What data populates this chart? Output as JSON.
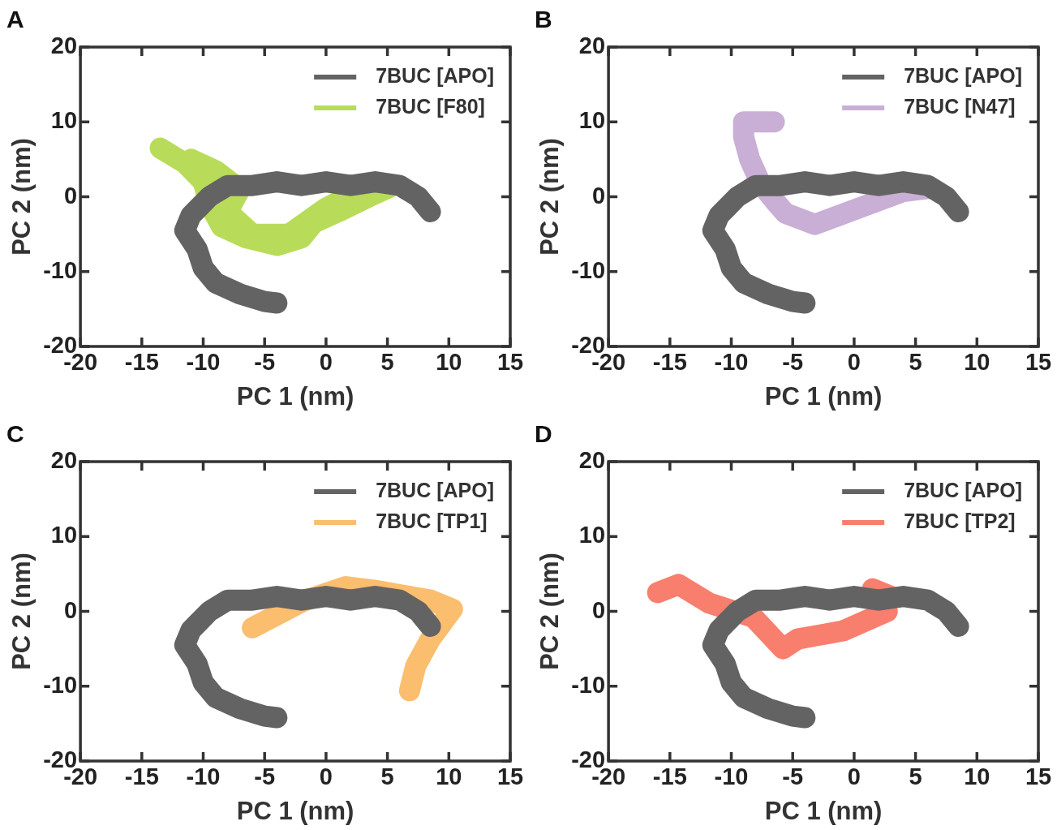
{
  "chart_data": [
    {
      "type": "line",
      "title": "A",
      "xlabel": "PC 1 (nm)",
      "ylabel": "PC 2 (nm)",
      "xlim": [
        -20,
        15
      ],
      "xticks": [
        -20,
        -15,
        -10,
        -5,
        0,
        5,
        10,
        15
      ],
      "ylim": [
        -20,
        20
      ],
      "yticks": [
        -20,
        -10,
        0,
        10,
        20
      ],
      "grid": false,
      "legend": "top right",
      "marker": "none",
      "series": [
        {
          "name": "7BUC [APO]",
          "color": "#636363",
          "x": [
            8.5,
            7.5,
            6,
            4,
            2,
            0,
            -2,
            -4,
            -6,
            -8,
            -9.5,
            -11,
            -11.5,
            -10.5,
            -10,
            -9,
            -7,
            -5,
            -4
          ],
          "values": [
            -2,
            0,
            1.5,
            2,
            1.5,
            2,
            1.5,
            2,
            1.5,
            1.5,
            0,
            -2.5,
            -4.5,
            -7,
            -9.5,
            -11.5,
            -13,
            -14,
            -14.2
          ]
        },
        {
          "name": "7BUC [F80]",
          "color": "#b8dc5a",
          "x": [
            -13.5,
            -11.5,
            -10,
            -9.5,
            -8.5,
            -6.5,
            -4,
            -2,
            -1,
            1,
            3.5,
            5.5,
            3,
            0,
            -3,
            -6,
            -8,
            -7,
            -9,
            -11
          ],
          "values": [
            6.5,
            4.5,
            2,
            -1,
            -4,
            -5.5,
            -6.5,
            -5.5,
            -3.5,
            -2,
            0,
            1.5,
            1,
            -1.5,
            -5,
            -5,
            -2,
            1,
            3.5,
            5
          ]
        }
      ]
    },
    {
      "type": "line",
      "title": "B",
      "xlabel": "PC 1 (nm)",
      "ylabel": "PC 2 (nm)",
      "xlim": [
        -20,
        15
      ],
      "xticks": [
        -20,
        -15,
        -10,
        -5,
        0,
        5,
        10,
        15
      ],
      "ylim": [
        -20,
        20
      ],
      "yticks": [
        -20,
        -10,
        0,
        10,
        20
      ],
      "grid": false,
      "legend": "top right",
      "marker": "none",
      "series": [
        {
          "name": "7BUC [APO]",
          "color": "#636363",
          "x": [
            8.5,
            7.5,
            6,
            4,
            2,
            0,
            -2,
            -4,
            -6,
            -8,
            -9.5,
            -11,
            -11.5,
            -10.5,
            -10,
            -9,
            -7,
            -5,
            -4
          ],
          "values": [
            -2,
            0,
            1.5,
            2,
            1.5,
            2,
            1.5,
            2,
            1.5,
            1.5,
            0,
            -2.5,
            -4.5,
            -7,
            -9.5,
            -11.5,
            -13,
            -14,
            -14.2
          ]
        },
        {
          "name": "7BUC [N47]",
          "color": "#c9aed6",
          "x": [
            -6.5,
            -9,
            -9,
            -8.5,
            -7.6,
            -6.5,
            -5.6,
            -3.2,
            0.4,
            4,
            6
          ],
          "values": [
            10,
            10,
            8,
            5,
            1.7,
            -0.5,
            -2.2,
            -3.7,
            -1.5,
            0.7,
            1.1
          ]
        }
      ]
    },
    {
      "type": "line",
      "title": "C",
      "xlabel": "PC 1 (nm)",
      "ylabel": "PC 2 (nm)",
      "xlim": [
        -20,
        15
      ],
      "xticks": [
        -20,
        -15,
        -10,
        -5,
        0,
        5,
        10,
        15
      ],
      "ylim": [
        -20,
        20
      ],
      "yticks": [
        -20,
        -10,
        0,
        10,
        20
      ],
      "grid": false,
      "legend": "top right",
      "marker": "none",
      "series": [
        {
          "name": "7BUC [APO]",
          "color": "#636363",
          "x": [
            8.5,
            7.5,
            6,
            4,
            2,
            0,
            -2,
            -4,
            -6,
            -8,
            -9.5,
            -11,
            -11.5,
            -10.5,
            -10,
            -9,
            -7,
            -5,
            -4
          ],
          "values": [
            -2,
            0,
            1.5,
            2,
            1.5,
            2,
            1.5,
            2,
            1.5,
            1.5,
            0,
            -2.5,
            -4.5,
            -7,
            -9.5,
            -11.5,
            -13,
            -14,
            -14.2
          ]
        },
        {
          "name": "7BUC [TP1]",
          "color": "#fbbd6e",
          "x": [
            -6,
            -1.8,
            1.6,
            4,
            6.1,
            8.5,
            10.3,
            8.5,
            7.3,
            6.8
          ],
          "values": [
            -2.2,
            1.4,
            3.3,
            2.8,
            2.2,
            1.5,
            0.3,
            -3.7,
            -7.3,
            -10.6
          ]
        }
      ]
    },
    {
      "type": "line",
      "title": "D",
      "xlabel": "PC 1 (nm)",
      "ylabel": "PC 2 (nm)",
      "xlim": [
        -20,
        15
      ],
      "xticks": [
        -20,
        -15,
        -10,
        -5,
        0,
        5,
        10,
        15
      ],
      "ylim": [
        -20,
        20
      ],
      "yticks": [
        -20,
        -10,
        0,
        10,
        20
      ],
      "grid": false,
      "legend": "top right",
      "marker": "none",
      "series": [
        {
          "name": "7BUC [APO]",
          "color": "#636363",
          "x": [
            8.5,
            7.5,
            6,
            4,
            2,
            0,
            -2,
            -4,
            -6,
            -8,
            -9.5,
            -11,
            -11.5,
            -10.5,
            -10,
            -9,
            -7,
            -5,
            -4
          ],
          "values": [
            -2,
            0,
            1.5,
            2,
            1.5,
            2,
            1.5,
            2,
            1.5,
            1.5,
            0,
            -2.5,
            -4.5,
            -7,
            -9.5,
            -11.5,
            -13,
            -14,
            -14.2
          ]
        },
        {
          "name": "7BUC [TP2]",
          "color": "#f87e6e",
          "x": [
            -16,
            -14.3,
            -11.8,
            -8.2,
            -5.8,
            -4.6,
            -0.9,
            2.7,
            1.5,
            3
          ],
          "values": [
            2.5,
            3.6,
            1.1,
            -0.8,
            -5,
            -3.7,
            -2.6,
            0,
            3,
            2
          ]
        }
      ]
    }
  ]
}
